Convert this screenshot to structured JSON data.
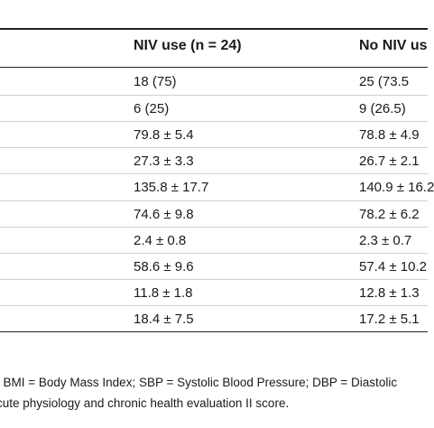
{
  "table": {
    "headers": {
      "niv_use": "NIV use (n = 24)",
      "no_niv": "No NIV us"
    },
    "rows": [
      {
        "niv_use": "18 (75)",
        "no_niv": "25 (73.5"
      },
      {
        "niv_use": "6 (25)",
        "no_niv": "9 (26.5)"
      },
      {
        "niv_use": "79.8 ± 5.4",
        "no_niv": "78.8 ± 4.9"
      },
      {
        "niv_use": "27.3 ± 3.3",
        "no_niv": "26.7 ± 2.1"
      },
      {
        "niv_use": "135.8 ± 17.7",
        "no_niv": "140.9 ± 16.2"
      },
      {
        "niv_use": "74.6 ± 9.8",
        "no_niv": "78.2 ± 6.2"
      },
      {
        "niv_use": "2.4 ± 0.8",
        "no_niv": "2.3 ± 0.7"
      },
      {
        "niv_use": "58.6 ± 9.6",
        "no_niv": "57.4 ± 10.2"
      },
      {
        "niv_use": "11.8 ± 1.8",
        "no_niv": "12.8 ± 1.3"
      },
      {
        "niv_use": "18.4 ± 7.5",
        "no_niv": "17.2 ± 5.1"
      }
    ]
  },
  "footnotes": {
    "line1": "; BMI = Body Mass Index; SBP = Systolic Blood Pressure; DBP = Diastolic",
    "line2": "cute physiology and chronic health evaluation II score."
  }
}
